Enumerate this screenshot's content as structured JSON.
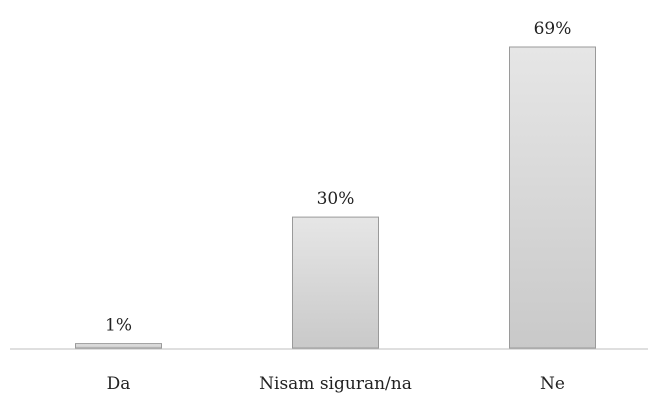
{
  "chart_data": {
    "type": "bar",
    "title": "",
    "xlabel": "",
    "ylabel": "",
    "categories": [
      "Da",
      "Nisam siguran/na",
      "Ne"
    ],
    "values": [
      1,
      30,
      69
    ],
    "value_labels": [
      "1%",
      "30%",
      "69%"
    ],
    "ylim": [
      0,
      69
    ],
    "grid": false,
    "legend": "none",
    "colors": {
      "bar_fill_top": "#e6e6e6",
      "bar_fill_bottom": "#c9c9c9",
      "bar_stroke": "#9a9a9a",
      "axis": "#bfbfbf",
      "text": "#222222"
    }
  }
}
